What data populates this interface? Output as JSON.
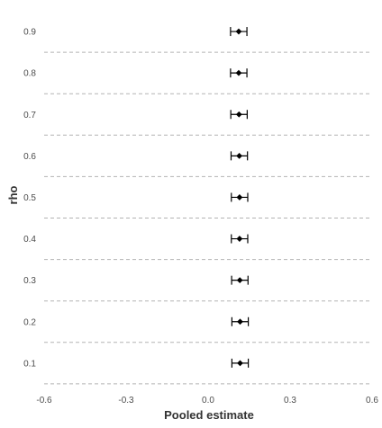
{
  "chart_data": {
    "type": "forest",
    "xlabel": "Pooled estimate",
    "ylabel": "rho",
    "xlim": [
      -0.6,
      0.6
    ],
    "x_ticks": [
      "-0.6",
      "-0.3",
      "0.0",
      "0.3",
      "0.6"
    ],
    "x_tick_values": [
      -0.6,
      -0.3,
      0.0,
      0.3,
      0.6
    ],
    "categories": [
      "0.9",
      "0.8",
      "0.7",
      "0.6",
      "0.5",
      "0.4",
      "0.3",
      "0.2",
      "0.1"
    ],
    "estimates": [
      0.112,
      0.112,
      0.113,
      0.114,
      0.115,
      0.115,
      0.116,
      0.117,
      0.117
    ],
    "ci_lower": [
      0.082,
      0.082,
      0.083,
      0.084,
      0.085,
      0.085,
      0.086,
      0.087,
      0.087
    ],
    "ci_upper": [
      0.142,
      0.142,
      0.143,
      0.144,
      0.145,
      0.145,
      0.146,
      0.147,
      0.147
    ],
    "grid": false,
    "row_separators": "dashed"
  }
}
